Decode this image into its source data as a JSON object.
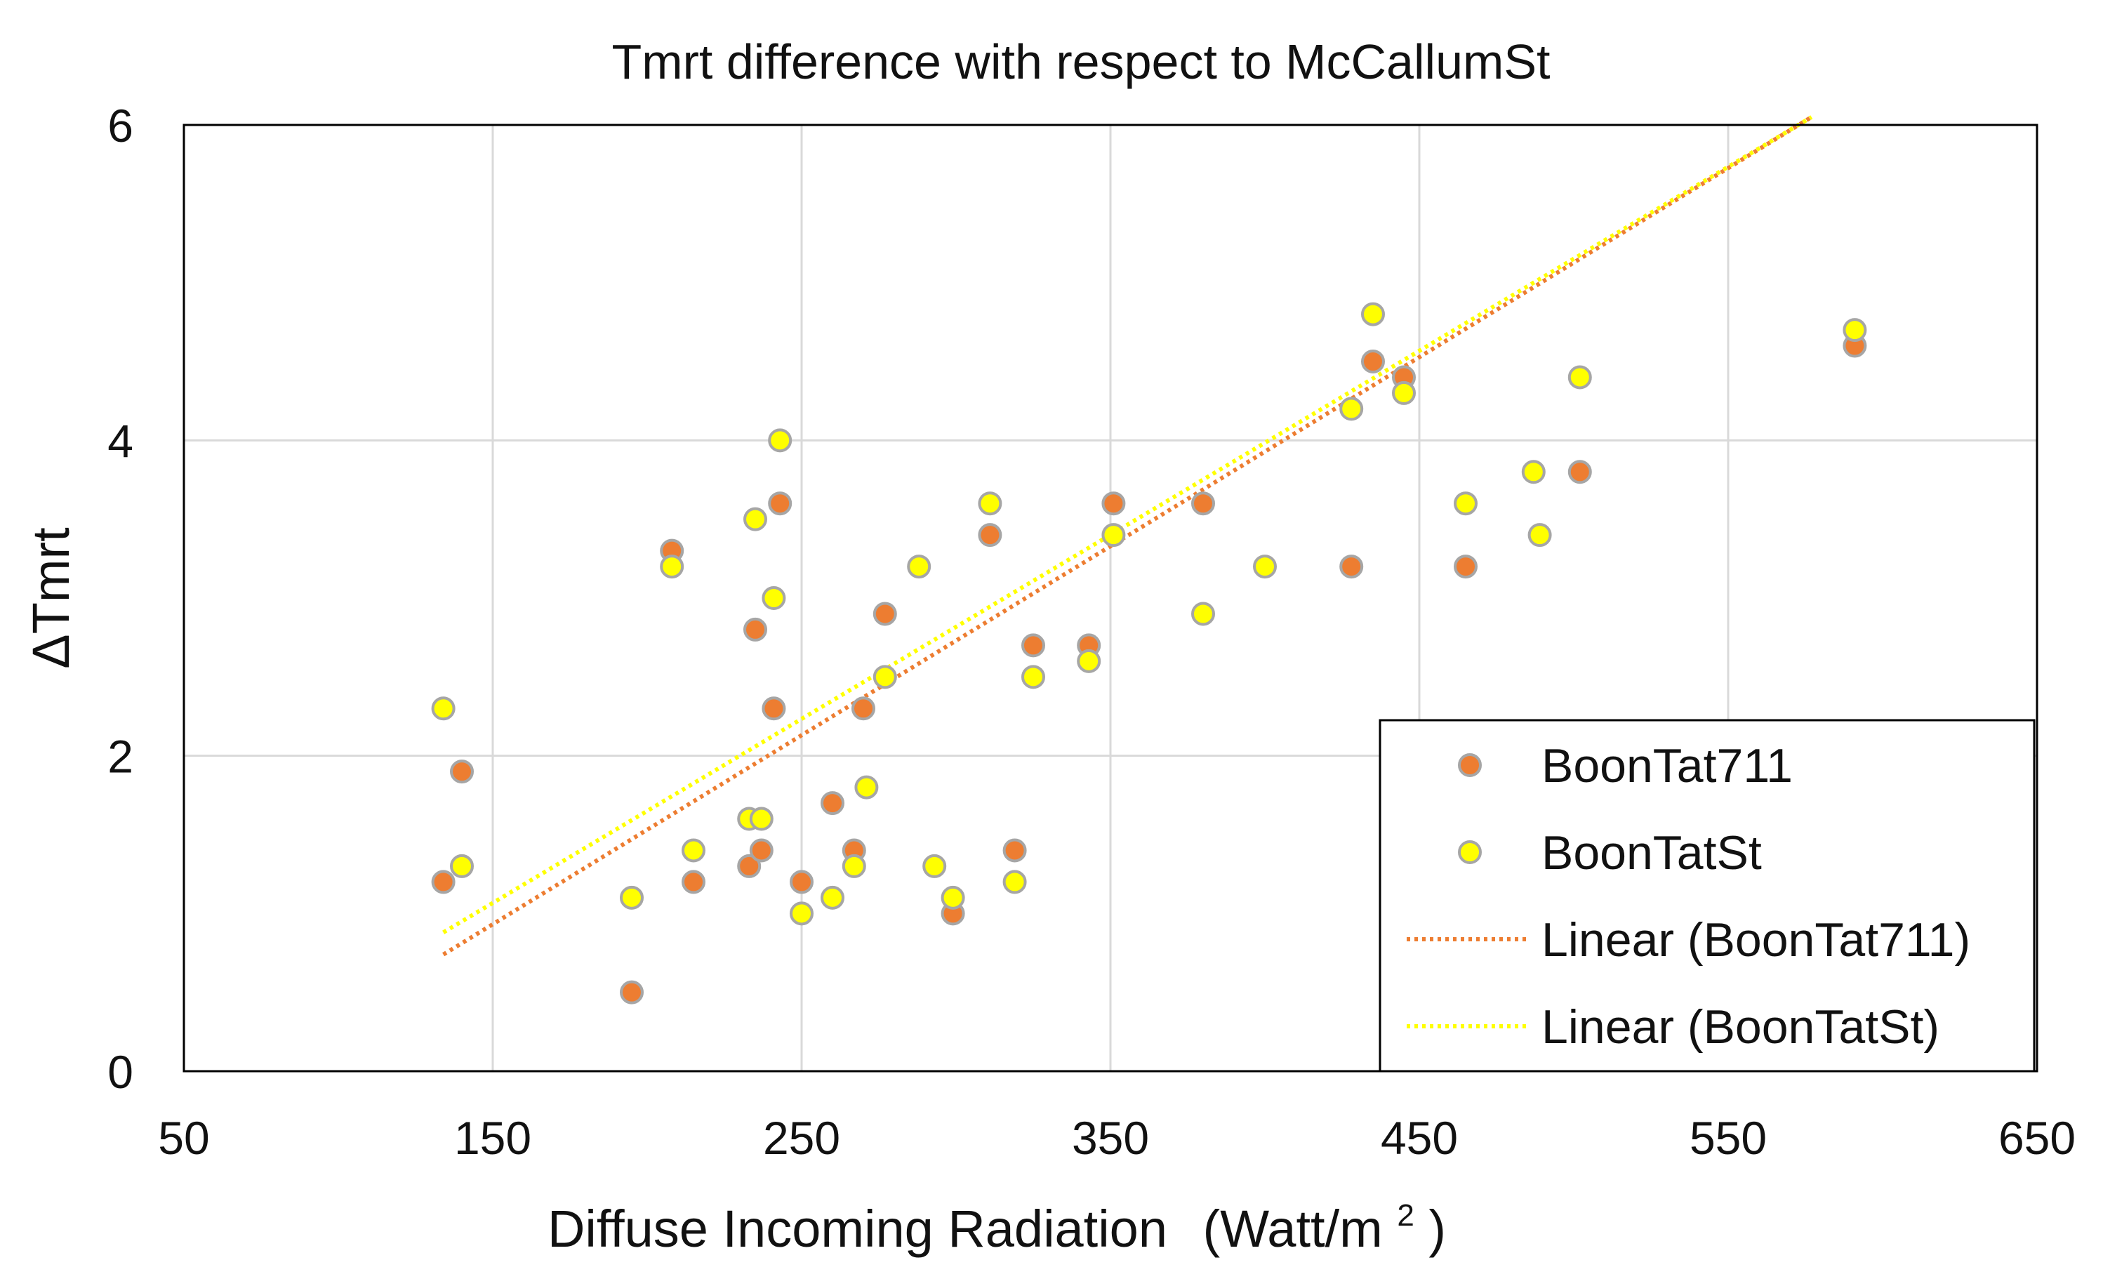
{
  "chart_data": {
    "type": "scatter",
    "title": "Tmrt difference with respect to McCallumSt",
    "xlabel": "Diffuse Incoming Radiation",
    "xlabel_unit": "(Watt/m",
    "xlabel_unit_sup": "2",
    "xlabel_unit_close": ")",
    "ylabel": "ΔTmrt",
    "xlim": [
      50,
      650
    ],
    "ylim": [
      0,
      6
    ],
    "xticks": [
      50,
      150,
      250,
      350,
      450,
      550,
      650
    ],
    "yticks": [
      0,
      2,
      4,
      6
    ],
    "grid": true,
    "legend_position": "bottom-right",
    "series": [
      {
        "name": "BoonTat711",
        "marker": "circle",
        "color": "#ED7D31",
        "edge_color": "#A6A6A6",
        "points": [
          [
            134,
            1.2
          ],
          [
            140,
            1.9
          ],
          [
            195,
            0.5
          ],
          [
            208,
            3.3
          ],
          [
            215,
            1.2
          ],
          [
            233,
            1.3
          ],
          [
            235,
            2.8
          ],
          [
            237,
            1.4
          ],
          [
            241,
            2.3
          ],
          [
            243,
            3.6
          ],
          [
            250,
            1.2
          ],
          [
            260,
            1.7
          ],
          [
            267,
            1.4
          ],
          [
            270,
            2.3
          ],
          [
            277,
            2.9
          ],
          [
            299,
            1.0
          ],
          [
            311,
            3.4
          ],
          [
            319,
            1.4
          ],
          [
            325,
            2.7
          ],
          [
            343,
            2.7
          ],
          [
            351,
            3.6
          ],
          [
            380,
            3.6
          ],
          [
            428,
            3.2
          ],
          [
            435,
            4.5
          ],
          [
            445,
            4.4
          ],
          [
            465,
            3.2
          ],
          [
            502,
            3.8
          ],
          [
            591,
            4.6
          ]
        ]
      },
      {
        "name": "BoonTatSt",
        "marker": "circle",
        "color": "#FFFF00",
        "edge_color": "#A6A6A6",
        "points": [
          [
            134,
            2.3
          ],
          [
            140,
            1.3
          ],
          [
            195,
            1.1
          ],
          [
            208,
            3.2
          ],
          [
            215,
            1.4
          ],
          [
            233,
            1.6
          ],
          [
            235,
            3.5
          ],
          [
            237,
            1.6
          ],
          [
            241,
            3.0
          ],
          [
            243,
            4.0
          ],
          [
            250,
            1.0
          ],
          [
            260,
            1.1
          ],
          [
            267,
            1.3
          ],
          [
            271,
            1.8
          ],
          [
            277,
            2.5
          ],
          [
            288,
            3.2
          ],
          [
            293,
            1.3
          ],
          [
            299,
            1.1
          ],
          [
            311,
            3.6
          ],
          [
            319,
            1.2
          ],
          [
            325,
            2.5
          ],
          [
            343,
            2.6
          ],
          [
            351,
            3.4
          ],
          [
            380,
            2.9
          ],
          [
            400,
            3.2
          ],
          [
            428,
            4.2
          ],
          [
            435,
            4.8
          ],
          [
            445,
            4.3
          ],
          [
            465,
            3.6
          ],
          [
            487,
            3.8
          ],
          [
            489,
            3.4
          ],
          [
            502,
            4.4
          ],
          [
            591,
            4.7
          ]
        ]
      }
    ],
    "trendlines": [
      {
        "name": "Linear (BoonTat711)",
        "type": "linear",
        "style": "dotted",
        "color": "#ED7D31",
        "x": [
          134,
          577
        ],
        "y": [
          0.74,
          6.05
        ]
      },
      {
        "name": "Linear (BoonTatSt)",
        "type": "linear",
        "style": "dotted",
        "color": "#FFFF00",
        "x": [
          134,
          577
        ],
        "y": [
          0.88,
          6.05
        ]
      }
    ]
  }
}
